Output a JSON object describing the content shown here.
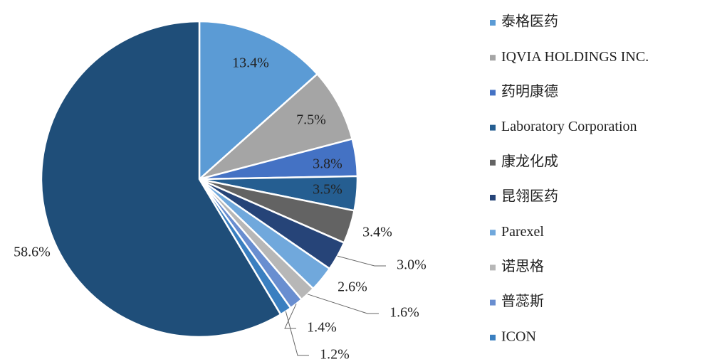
{
  "chart_data": {
    "type": "pie",
    "categories": [
      "泰格医药",
      "IQVIA HOLDINGS INC.",
      "药明康德",
      "Laboratory Corporation",
      "康龙化成",
      "昆翎医药",
      "Parexel",
      "诺思格",
      "普蕊斯",
      "ICON",
      null
    ],
    "values": [
      13.4,
      7.5,
      3.8,
      3.5,
      3.4,
      3.0,
      2.6,
      1.6,
      1.4,
      1.2,
      58.6
    ],
    "value_labels": [
      "13.4%",
      "7.5%",
      "3.8%",
      "3.5%",
      "3.4%",
      "3.0%",
      "2.6%",
      "1.6%",
      "1.4%",
      "1.2%",
      "58.6%"
    ],
    "colors": [
      "#5b9bd5",
      "#a5a5a5",
      "#4472c4",
      "#255e91",
      "#636363",
      "#264478",
      "#70a8dc",
      "#b7b7b7",
      "#698ed0",
      "#3a7fc0",
      "#1f4e79"
    ],
    "legend": "right"
  }
}
